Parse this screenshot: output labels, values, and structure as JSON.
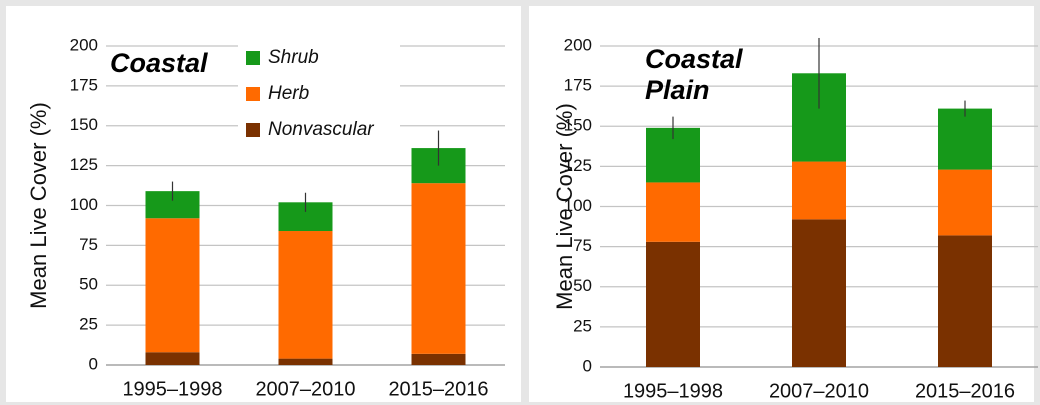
{
  "chart_data": [
    {
      "type": "stacked_bar",
      "title": "Coastal",
      "y_label": "Mean Live Cover (%)",
      "categories": [
        "1995–1998",
        "2007–2010",
        "2015–2016"
      ],
      "series": [
        {
          "name": "Shrub",
          "color": "#16991a",
          "values": [
            17,
            18,
            22
          ],
          "errors": [
            6,
            6,
            11
          ]
        },
        {
          "name": "Herb",
          "color": "#ff6a00",
          "values": [
            84,
            80,
            107
          ]
        },
        {
          "name": "Nonvascular",
          "color": "#7a3100",
          "values": [
            8,
            4,
            7
          ]
        }
      ],
      "ylim": [
        0,
        200
      ],
      "yticks": [
        0,
        25,
        50,
        75,
        100,
        125,
        150,
        175,
        200
      ],
      "grid": true,
      "legend": "top-center"
    },
    {
      "type": "stacked_bar",
      "title": "Coastal Plain",
      "y_label": "Mean Live Cover (%)",
      "categories": [
        "1995–1998",
        "2007–2010",
        "2015–2016"
      ],
      "series": [
        {
          "color": "#16991a",
          "values": [
            34,
            55,
            38
          ],
          "errors": [
            7,
            22,
            5
          ]
        },
        {
          "color": "#ff6a00",
          "values": [
            37,
            36,
            41
          ]
        },
        {
          "color": "#7a3100",
          "values": [
            78,
            92,
            82
          ]
        }
      ],
      "ylim": [
        0,
        200
      ],
      "yticks": [
        0,
        25,
        50,
        75,
        100,
        125,
        150,
        175,
        200
      ],
      "grid": true
    }
  ]
}
